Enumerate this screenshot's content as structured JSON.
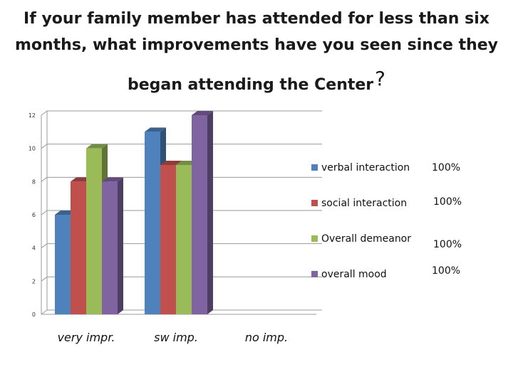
{
  "title": {
    "line1": "If your family member has attended for less than six",
    "line2": "months, what improvements have you seen since they",
    "line3": "began attending the Center",
    "line3_suffix": "?"
  },
  "chart_data": {
    "type": "bar",
    "title": "If your family member has attended for less than six months, what improvements have you seen since they began attending the Center?",
    "categories": [
      "very impr.",
      "sw imp.",
      "no imp."
    ],
    "series": [
      {
        "name": "verbal interaction",
        "color": "#4f81bd",
        "values": [
          6,
          11,
          0
        ]
      },
      {
        "name": "social interaction",
        "color": "#c0504d",
        "values": [
          8,
          9,
          0
        ]
      },
      {
        "name": "Overall demeanor",
        "color": "#9bbb59",
        "values": [
          10,
          9,
          0
        ]
      },
      {
        "name": "overall mood",
        "color": "#8064a2",
        "values": [
          8,
          12,
          0
        ]
      }
    ],
    "ylim": [
      0,
      12
    ],
    "yticks": [
      "0",
      "2",
      "4",
      "6",
      "8",
      "10",
      "12"
    ],
    "xlabel": "",
    "ylabel": "",
    "grid": true,
    "legend_position": "right",
    "three_d": true
  },
  "legend_percents": [
    "100%",
    "100%",
    "100%",
    "100%"
  ]
}
